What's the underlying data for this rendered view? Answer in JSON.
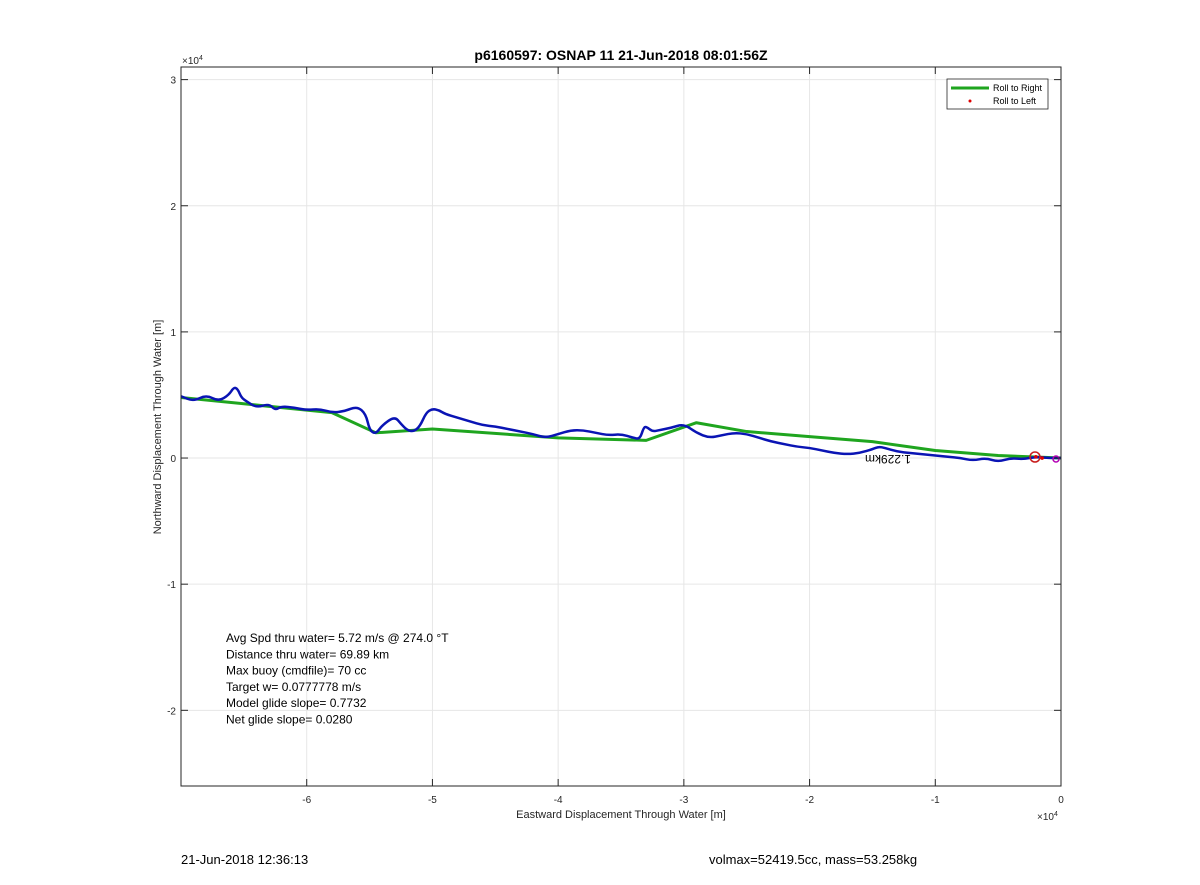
{
  "chart_data": {
    "type": "line",
    "title": "p6160597: OSNAP 11 21-Jun-2018 08:01:56Z",
    "xlabel": "Eastward Displacement Through Water [m]",
    "ylabel": "Northward Displacement Through Water [m]",
    "x_exponent_label": "×10",
    "x_exponent": "4",
    "y_exponent_label": "×10",
    "y_exponent": "4",
    "xlim": [
      -70000,
      0
    ],
    "ylim": [
      -26000,
      31000
    ],
    "x_ticks": [
      -60000,
      -50000,
      -40000,
      -30000,
      -20000,
      -10000,
      0
    ],
    "x_tick_labels": [
      "-6",
      "-5",
      "-4",
      "-3",
      "-2",
      "-1",
      "0"
    ],
    "y_ticks": [
      -20000,
      -10000,
      0,
      10000,
      20000,
      30000
    ],
    "y_tick_labels": [
      "-2",
      "-1",
      "0",
      "1",
      "2",
      "3"
    ],
    "grid": true,
    "legend_position": "top-right",
    "colors": {
      "roll_right": "#1fa51f",
      "roll_left": "#e00000",
      "track": "#0a14b4",
      "mark": "#c81e1e"
    },
    "series": [
      {
        "name": "Roll to Right",
        "style": "line",
        "x": [
          -70000,
          -58000,
          -54500,
          -50000,
          -40000,
          -33000,
          -29000,
          -25000,
          -20000,
          -15000,
          -10000,
          -5000,
          0
        ],
        "y": [
          4800,
          3600,
          2000,
          2300,
          1600,
          1400,
          2800,
          2100,
          1700,
          1300,
          600,
          200,
          0
        ]
      },
      {
        "name": "Roll to Left",
        "style": "markers",
        "x": [
          -2000,
          -1500
        ],
        "y": [
          100,
          0
        ]
      },
      {
        "name": "",
        "style": "line",
        "x": [
          -70000,
          -69000,
          -68000,
          -67000,
          -66200,
          -65800,
          -65500,
          -65200,
          -64800,
          -64000,
          -63000,
          -62500,
          -62000,
          -61000,
          -60000,
          -59000,
          -58000,
          -57000,
          -56000,
          -55300,
          -55000,
          -54500,
          -54000,
          -53000,
          -52500,
          -52000,
          -51500,
          -51000,
          -50500,
          -50000,
          -49500,
          -49000,
          -48000,
          -47000,
          -46000,
          -45000,
          -44000,
          -43000,
          -42000,
          -41000,
          -40000,
          -39000,
          -38000,
          -37000,
          -36000,
          -35000,
          -34000,
          -33500,
          -33200,
          -33000,
          -32500,
          -32000,
          -31000,
          -30000,
          -29000,
          -28000,
          -27000,
          -26000,
          -25000,
          -24000,
          -23000,
          -22000,
          -21000,
          -20000,
          -19000,
          -18000,
          -17000,
          -16000,
          -15000,
          -14500,
          -14000,
          -13000,
          -12000,
          -11000,
          -10000,
          -9000,
          -8000,
          -7000,
          -6000,
          -5000,
          -4000,
          -3000,
          -2000,
          -1000,
          0
        ],
        "y": [
          4900,
          4500,
          5000,
          4500,
          5000,
          5600,
          5500,
          4800,
          4500,
          4000,
          4300,
          3800,
          4100,
          4000,
          3800,
          3900,
          3600,
          3700,
          4100,
          3500,
          2200,
          1900,
          2600,
          3300,
          2700,
          2200,
          2100,
          2500,
          3600,
          3900,
          3800,
          3500,
          3200,
          2900,
          2600,
          2500,
          2300,
          2100,
          1900,
          1600,
          1900,
          2200,
          2200,
          2000,
          1800,
          1900,
          1600,
          1500,
          2400,
          2500,
          2100,
          2200,
          2400,
          2700,
          2000,
          1600,
          1800,
          2000,
          1900,
          1600,
          1300,
          1100,
          900,
          800,
          600,
          400,
          300,
          400,
          700,
          900,
          800,
          500,
          400,
          300,
          200,
          100,
          0,
          -200,
          0,
          -300,
          0,
          -100,
          100,
          0,
          0
        ]
      }
    ],
    "curved_label": "1.229km",
    "stats": [
      "Avg Spd thru water=  5.72 m/s @ 274.0 °T",
      "Distance thru water= 69.89 km",
      "Max buoy (cmdfile)= 70 cc",
      "Target w= 0.0777778 m/s",
      "Model glide slope= 0.7732",
      "Net glide slope= 0.0280"
    ]
  },
  "footer": {
    "left": "21-Jun-2018 12:36:13",
    "right": "volmax=52419.5cc, mass=53.258kg"
  }
}
